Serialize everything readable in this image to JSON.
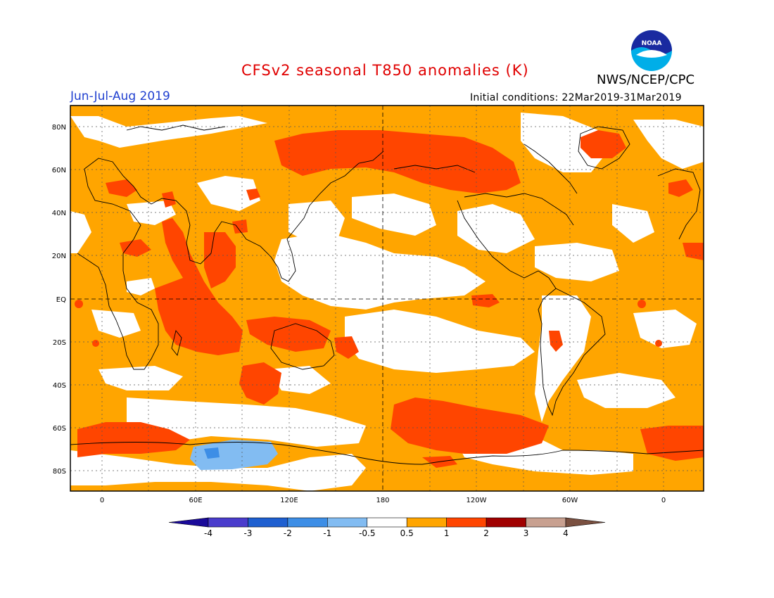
{
  "title": "CFSv2 seasonal T850 anomalies (K)",
  "season": "Jun-Jul-Aug 2019",
  "initial_conditions": "Initial conditions: 22Mar2019-31Mar2019",
  "agency": "NWS/NCEP/CPC",
  "logo_text": "NOAA",
  "lat_labels": [
    "80N",
    "60N",
    "40N",
    "20N",
    "EQ",
    "20S",
    "40S",
    "60S",
    "80S"
  ],
  "lon_labels": [
    "0",
    "60E",
    "120E",
    "180",
    "120W",
    "60W",
    "0"
  ],
  "colorbar": {
    "labels": [
      "-4",
      "-3",
      "-2",
      "-1",
      "-0.5",
      "0.5",
      "1",
      "2",
      "3",
      "4"
    ],
    "colors": [
      "#1a0a9a",
      "#4a3ccc",
      "#1e5fd0",
      "#3d8ee6",
      "#82bcf2",
      "#ffffff",
      "#ffa500",
      "#ff4500",
      "#a00000",
      "#c8a090",
      "#7a5040"
    ]
  }
}
